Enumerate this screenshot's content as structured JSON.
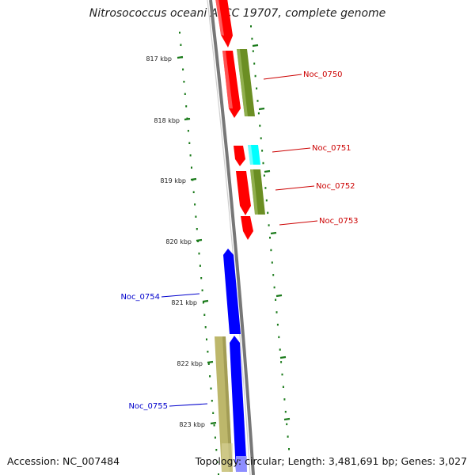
{
  "title": "Nitrosococcus oceani ATCC 19707, complete genome",
  "footer": {
    "accession": "Accession: NC_007484",
    "topology": "Topology: circular; Length: 3,481,691 bp; Genes: 3,027"
  },
  "scale_labels": [
    "817 kbp",
    "818 kbp",
    "819 kbp",
    "820 kbp",
    "821 kbp",
    "822 kbp",
    "823 kbp"
  ],
  "gene_labels": {
    "forward": [
      "Noc_0750",
      "Noc_0751",
      "Noc_0752",
      "Noc_0753"
    ],
    "reverse": [
      "Noc_0754",
      "Noc_0755"
    ]
  },
  "colors": {
    "forward_cds": "#ff0000",
    "forward_other": "#6b8e23",
    "cyan_feature": "#00ffff",
    "reverse_cds": "#0000ff",
    "reverse_other": "#bdb76b",
    "forward_label": "#cc0000",
    "reverse_label": "#0000cc",
    "tick": "#1a7a1a",
    "backbone": "#777777"
  }
}
